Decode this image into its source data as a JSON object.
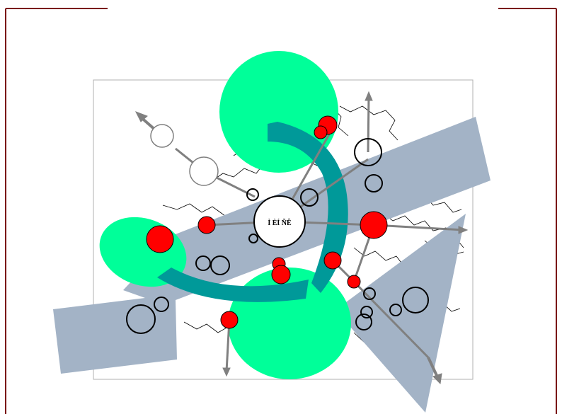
{
  "slide": {
    "center_label": "Ì ÈÍ ÑÊ"
  },
  "colors": {
    "frame": "#7a1010",
    "arrow_fill": "#a3b3c6",
    "zone_fill": "#00ff99",
    "swoosh_fill": "#009999",
    "node_red": "#ff0000",
    "node_outline": "#000000",
    "connector": "#808080",
    "map_border": "#000000",
    "map_frame": "#b0b0b0"
  }
}
